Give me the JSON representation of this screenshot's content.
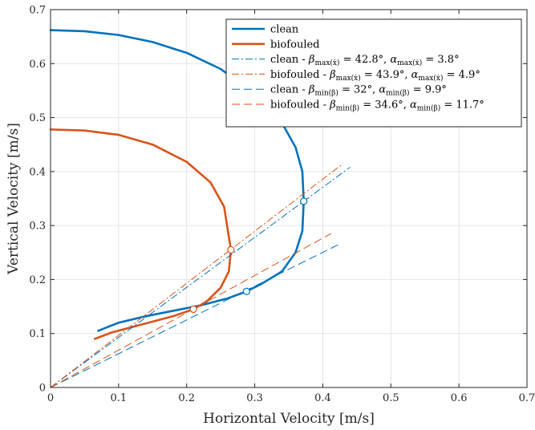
{
  "chart_data": {
    "type": "line",
    "title": "",
    "xlabel": "Horizontal Velocity [m/s]",
    "ylabel": "Vertical Velocity [m/s]",
    "xlim": [
      0,
      0.7
    ],
    "ylim": [
      0,
      0.7
    ],
    "xticks": [
      "0",
      "0.1",
      "0.2",
      "0.3",
      "0.4",
      "0.5",
      "0.6",
      "0.7"
    ],
    "yticks": [
      "0",
      "0.1",
      "0.2",
      "0.3",
      "0.4",
      "0.5",
      "0.6",
      "0.7"
    ],
    "grid": true,
    "legend_position": "top-right",
    "colors": {
      "clean": "#0072BD",
      "biofouled": "#D95319"
    },
    "series": [
      {
        "name": "clean",
        "style": "solid",
        "color": "#0072BD",
        "x": [
          0.0,
          0.05,
          0.1,
          0.15,
          0.2,
          0.25,
          0.3,
          0.34,
          0.36,
          0.37,
          0.372,
          0.37,
          0.36,
          0.34,
          0.31,
          0.288,
          0.26,
          0.22,
          0.18,
          0.14,
          0.1,
          0.07
        ],
        "y": [
          0.662,
          0.66,
          0.653,
          0.64,
          0.62,
          0.59,
          0.545,
          0.49,
          0.445,
          0.4,
          0.345,
          0.29,
          0.25,
          0.215,
          0.192,
          0.178,
          0.165,
          0.152,
          0.142,
          0.132,
          0.12,
          0.105
        ]
      },
      {
        "name": "biofouled",
        "style": "solid",
        "color": "#D95319",
        "x": [
          0.0,
          0.05,
          0.1,
          0.15,
          0.2,
          0.235,
          0.255,
          0.265,
          0.262,
          0.25,
          0.23,
          0.21,
          0.18,
          0.15,
          0.12,
          0.09,
          0.065
        ],
        "y": [
          0.478,
          0.476,
          0.468,
          0.45,
          0.418,
          0.38,
          0.335,
          0.255,
          0.215,
          0.185,
          0.16,
          0.145,
          0.132,
          0.122,
          0.112,
          0.102,
          0.09
        ]
      },
      {
        "name": "clean - βmax(ẋ) = 42.8°, αmax(ẋ) = 3.8°",
        "style": "dashdot",
        "color": "#0072BD",
        "x": [
          0,
          0.44
        ],
        "y": [
          0,
          0.408
        ]
      },
      {
        "name": "biofouled - βmax(ẋ) = 43.9°, αmax(ẋ) = 4.9°",
        "style": "dashdot",
        "color": "#D95319",
        "x": [
          0,
          0.43
        ],
        "y": [
          0,
          0.415
        ]
      },
      {
        "name": "clean - βmin(β) = 32°, αmin(β) = 9.9°",
        "style": "dashed",
        "color": "#0072BD",
        "x": [
          0,
          0.425
        ],
        "y": [
          0,
          0.266
        ]
      },
      {
        "name": "biofouled - βmin(β) = 34.6°, αmin(β) = 11.7°",
        "style": "dashed",
        "color": "#D95319",
        "x": [
          0,
          0.412
        ],
        "y": [
          0,
          0.285
        ]
      }
    ],
    "markers": [
      {
        "series": "clean",
        "x": 0.372,
        "y": 0.345
      },
      {
        "series": "biofouled",
        "x": 0.265,
        "y": 0.255
      },
      {
        "series": "clean",
        "x": 0.288,
        "y": 0.178
      },
      {
        "series": "biofouled",
        "x": 0.21,
        "y": 0.145
      }
    ],
    "legend": [
      {
        "series": 0,
        "main": "clean",
        "parts": []
      },
      {
        "series": 1,
        "main": "biofouled",
        "parts": []
      },
      {
        "series": 2,
        "main": "clean - ",
        "parts": [
          {
            "g": "β",
            "sub": "max(ẋ)",
            "val": " = 42.8°, "
          },
          {
            "g": "α",
            "sub": "max(ẋ)",
            "val": " = 3.8°"
          }
        ]
      },
      {
        "series": 3,
        "main": "biofouled - ",
        "parts": [
          {
            "g": "β",
            "sub": "max(ẋ)",
            "val": " = 43.9°, "
          },
          {
            "g": "α",
            "sub": "max(ẋ)",
            "val": " = 4.9°"
          }
        ]
      },
      {
        "series": 4,
        "main": "clean - ",
        "parts": [
          {
            "g": "β",
            "sub": "min(β)",
            "val": " = 32°, "
          },
          {
            "g": "α",
            "sub": "min(β)",
            "val": " = 9.9°"
          }
        ]
      },
      {
        "series": 5,
        "main": "biofouled - ",
        "parts": [
          {
            "g": "β",
            "sub": "min(β)",
            "val": " = 34.6°, "
          },
          {
            "g": "α",
            "sub": "min(β)",
            "val": " = 11.7°"
          }
        ]
      }
    ]
  }
}
